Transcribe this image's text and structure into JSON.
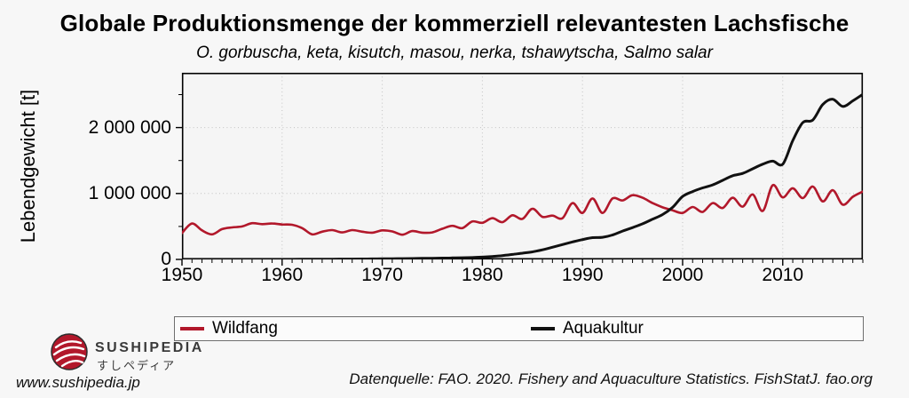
{
  "header": {
    "title": "Globale Produktionsmenge der kommerziell relevantesten Lachsfische",
    "subtitle": "O. gorbuscha, keta, kisutch, masou, nerka, tshawytscha, Salmo salar"
  },
  "chart_data": {
    "type": "line",
    "title": "Globale Produktionsmenge der kommerziell relevantesten Lachsfische",
    "subtitle": "O. gorbuscha, keta, kisutch, masou, nerka, tshawytscha, Salmo salar",
    "ylabel": "Lebendgewicht [t]",
    "xlabel": "",
    "xlim": [
      1950,
      2018
    ],
    "ylim": [
      0,
      2830000
    ],
    "grid": {
      "style": "dotted",
      "vertical_at": [
        1960,
        1970,
        1980,
        1990,
        2000,
        2010
      ],
      "horizontal_at": [
        1000000,
        2000000
      ],
      "color": "#c2c2c2"
    },
    "legend_position": "bottom",
    "frame_color": "#000000",
    "plot_bg": "#f5f5f5",
    "yticks": [
      {
        "value": 0,
        "label": "0"
      },
      {
        "value": 1000000,
        "label": "1 000 000"
      },
      {
        "value": 2000000,
        "label": "2 000 000"
      }
    ],
    "ytick_minor_values": [
      500000,
      1500000,
      2500000
    ],
    "xticks": [
      {
        "value": 1950,
        "label": "1950"
      },
      {
        "value": 1960,
        "label": "1960"
      },
      {
        "value": 1970,
        "label": "1970"
      },
      {
        "value": 1980,
        "label": "1980"
      },
      {
        "value": 1990,
        "label": "1990"
      },
      {
        "value": 2000,
        "label": "2000"
      },
      {
        "value": 2010,
        "label": "2010"
      }
    ],
    "xtick_minor_step": 1,
    "years": [
      1950,
      1951,
      1952,
      1953,
      1954,
      1955,
      1956,
      1957,
      1958,
      1959,
      1960,
      1961,
      1962,
      1963,
      1964,
      1965,
      1966,
      1967,
      1968,
      1969,
      1970,
      1971,
      1972,
      1973,
      1974,
      1975,
      1976,
      1977,
      1978,
      1979,
      1980,
      1981,
      1982,
      1983,
      1984,
      1985,
      1986,
      1987,
      1988,
      1989,
      1990,
      1991,
      1992,
      1993,
      1994,
      1995,
      1996,
      1997,
      1998,
      1999,
      2000,
      2001,
      2002,
      2003,
      2004,
      2005,
      2006,
      2007,
      2008,
      2009,
      2010,
      2011,
      2012,
      2013,
      2014,
      2015,
      2016,
      2017,
      2018
    ],
    "series": [
      {
        "name": "Wildfang",
        "color": "#b2182b",
        "values": [
          400000,
          545000,
          440000,
          380000,
          460000,
          485000,
          500000,
          550000,
          535000,
          545000,
          530000,
          525000,
          475000,
          380000,
          420000,
          445000,
          410000,
          445000,
          420000,
          405000,
          440000,
          425000,
          375000,
          430000,
          405000,
          410000,
          465000,
          510000,
          475000,
          575000,
          555000,
          625000,
          565000,
          670000,
          615000,
          770000,
          645000,
          665000,
          625000,
          855000,
          705000,
          925000,
          705000,
          925000,
          895000,
          975000,
          935000,
          855000,
          790000,
          745000,
          705000,
          795000,
          720000,
          855000,
          780000,
          935000,
          800000,
          985000,
          735000,
          1125000,
          940000,
          1080000,
          930000,
          1105000,
          880000,
          1050000,
          830000,
          950000,
          1030000
        ]
      },
      {
        "name": "Aquakultur",
        "color": "#111111",
        "values": [
          1000,
          1000,
          1000,
          1000,
          1000,
          1000,
          1000,
          1000,
          1000,
          1000,
          2000,
          2000,
          3000,
          3000,
          4000,
          4000,
          5000,
          6000,
          7000,
          8000,
          10000,
          11000,
          12000,
          14000,
          16000,
          18000,
          20000,
          23000,
          26000,
          28000,
          35000,
          45000,
          58000,
          75000,
          95000,
          115000,
          145000,
          185000,
          225000,
          265000,
          300000,
          330000,
          335000,
          370000,
          430000,
          483000,
          540000,
          610000,
          680000,
          790000,
          955000,
          1030000,
          1085000,
          1130000,
          1200000,
          1270000,
          1305000,
          1375000,
          1445000,
          1490000,
          1445000,
          1800000,
          2075000,
          2115000,
          2350000,
          2430000,
          2320000,
          2405000,
          2505000
        ]
      }
    ]
  },
  "legend": {
    "items": [
      {
        "label": "Wildfang",
        "color": "#b2182b"
      },
      {
        "label": "Aquakultur",
        "color": "#111111"
      }
    ]
  },
  "footer": {
    "brand": {
      "name": "SUSHIPEDIA",
      "name_jp": "すしペディア",
      "url": "www.sushipedia.jp"
    },
    "source": "Datenquelle: FAO. 2020. Fishery and Aquaculture Statistics. FishStatJ. fao.org"
  }
}
